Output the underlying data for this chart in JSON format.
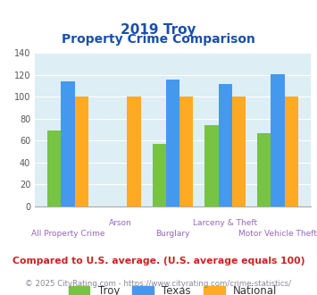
{
  "title_line1": "2019 Troy",
  "title_line2": "Property Crime Comparison",
  "categories": [
    "All Property Crime",
    "Arson",
    "Burglary",
    "Larceny & Theft",
    "Motor Vehicle Theft"
  ],
  "x_labels_top": [
    "",
    "Arson",
    "",
    "Larceny & Theft",
    ""
  ],
  "x_labels_bottom": [
    "All Property Crime",
    "",
    "Burglary",
    "",
    "Motor Vehicle Theft"
  ],
  "troy_values": [
    69,
    0,
    57,
    74,
    67
  ],
  "texas_values": [
    114,
    0,
    116,
    112,
    121
  ],
  "national_values": [
    100,
    100,
    100,
    100,
    100
  ],
  "troy_color": "#77c344",
  "texas_color": "#4499ee",
  "national_color": "#ffaa22",
  "background_color": "#ddeef5",
  "ylim": [
    0,
    140
  ],
  "yticks": [
    0,
    20,
    40,
    60,
    80,
    100,
    120,
    140
  ],
  "legend_labels": [
    "Troy",
    "Texas",
    "National"
  ],
  "footnote1": "Compared to U.S. average. (U.S. average equals 100)",
  "footnote2": "© 2025 CityRating.com - https://www.cityrating.com/crime-statistics/",
  "title_color": "#1a4faa",
  "xlabel_color": "#9966bb",
  "footnote1_color": "#cc2222",
  "footnote2_color": "#888899",
  "footnote2_link_color": "#4488cc"
}
